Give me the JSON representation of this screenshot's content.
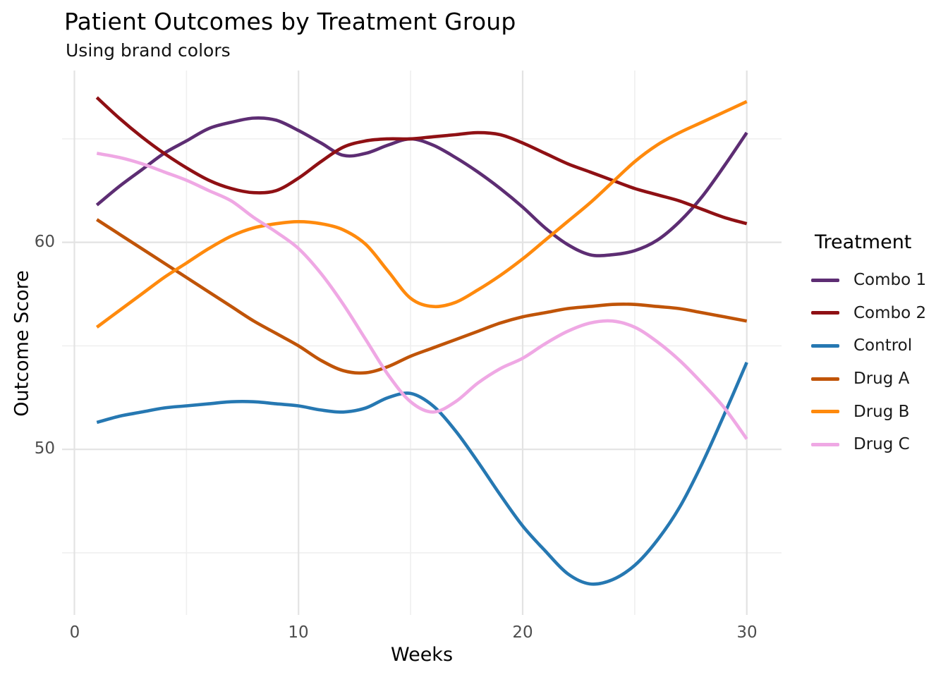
{
  "title": "Patient Outcomes by Treatment Group",
  "subtitle": "Using brand colors",
  "chart_data": {
    "type": "line",
    "title": "Patient Outcomes by Treatment Group",
    "subtitle": "Using brand colors",
    "xlabel": "Weeks",
    "ylabel": "Outcome Score",
    "x_ticks": [
      "0",
      "10",
      "20",
      "30"
    ],
    "y_ticks": [
      "50",
      "60"
    ],
    "xlim": [
      -0.55,
      31.55
    ],
    "ylim": [
      42.0,
      68.3
    ],
    "grid": {
      "on": true,
      "major_x": [
        0,
        10,
        20,
        30
      ],
      "minor_x": [
        5,
        15,
        25
      ],
      "major_y": [
        50,
        60
      ],
      "minor_y": [
        45,
        55,
        65
      ],
      "major_color": "#e3e3e3",
      "minor_color": "#efefef"
    },
    "legend_title": "Treatment",
    "legend_position": "right",
    "x": [
      1,
      2,
      3,
      4,
      5,
      6,
      7,
      8,
      9,
      10,
      11,
      12,
      13,
      14,
      15,
      16,
      17,
      18,
      19,
      20,
      21,
      22,
      23,
      24,
      25,
      26,
      27,
      28,
      29,
      30
    ],
    "series": [
      {
        "name": "Combo 1",
        "color": "#5D2D73",
        "values": [
          61.8,
          62.7,
          63.5,
          64.3,
          64.9,
          65.5,
          65.8,
          66.0,
          65.9,
          65.4,
          64.8,
          64.2,
          64.3,
          64.7,
          65.0,
          64.7,
          64.1,
          63.4,
          62.6,
          61.7,
          60.7,
          59.9,
          59.4,
          59.4,
          59.6,
          60.1,
          61.0,
          62.2,
          63.7,
          65.3
        ]
      },
      {
        "name": "Combo 2",
        "color": "#8F1014",
        "values": [
          67.0,
          66.0,
          65.1,
          64.3,
          63.6,
          63.0,
          62.6,
          62.4,
          62.5,
          63.1,
          63.9,
          64.6,
          64.9,
          65.0,
          65.0,
          65.1,
          65.2,
          65.3,
          65.2,
          64.8,
          64.3,
          63.8,
          63.4,
          63.0,
          62.6,
          62.3,
          62.0,
          61.6,
          61.2,
          60.9
        ]
      },
      {
        "name": "Control",
        "color": "#2678B2",
        "values": [
          51.3,
          51.6,
          51.8,
          52.0,
          52.1,
          52.2,
          52.3,
          52.3,
          52.2,
          52.1,
          51.9,
          51.8,
          52.0,
          52.5,
          52.7,
          52.1,
          50.9,
          49.4,
          47.8,
          46.3,
          45.1,
          44.0,
          43.5,
          43.7,
          44.4,
          45.6,
          47.2,
          49.3,
          51.7,
          54.2
        ]
      },
      {
        "name": "Drug A",
        "color": "#C05408",
        "values": [
          61.1,
          60.4,
          59.7,
          59.0,
          58.3,
          57.6,
          56.9,
          56.2,
          55.6,
          55.0,
          54.3,
          53.8,
          53.7,
          54.0,
          54.5,
          54.9,
          55.3,
          55.7,
          56.1,
          56.4,
          56.6,
          56.8,
          56.9,
          57.0,
          57.0,
          56.9,
          56.8,
          56.6,
          56.4,
          56.2
        ]
      },
      {
        "name": "Drug B",
        "color": "#FF8A0D",
        "values": [
          55.9,
          56.7,
          57.5,
          58.3,
          59.0,
          59.7,
          60.3,
          60.7,
          60.9,
          61.0,
          60.9,
          60.6,
          59.9,
          58.6,
          57.3,
          56.9,
          57.1,
          57.7,
          58.4,
          59.2,
          60.1,
          61.0,
          61.9,
          62.9,
          63.9,
          64.7,
          65.3,
          65.8,
          66.3,
          66.8
        ]
      },
      {
        "name": "Drug C",
        "color": "#EFA8E4",
        "values": [
          64.3,
          64.1,
          63.8,
          63.4,
          63.0,
          62.5,
          62.0,
          61.2,
          60.5,
          59.7,
          58.5,
          57.0,
          55.3,
          53.6,
          52.3,
          51.8,
          52.3,
          53.2,
          53.9,
          54.4,
          55.1,
          55.7,
          56.1,
          56.2,
          55.9,
          55.2,
          54.3,
          53.2,
          52.0,
          50.5
        ]
      }
    ]
  }
}
